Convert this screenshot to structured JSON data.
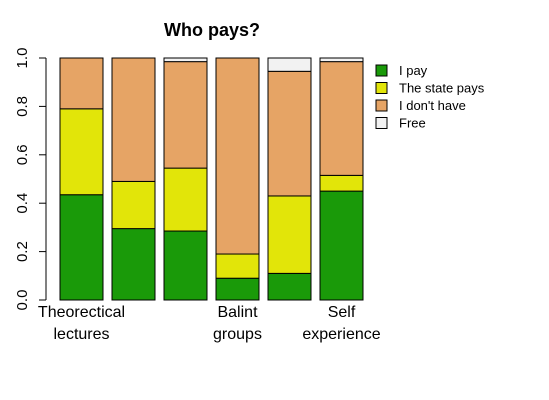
{
  "chart_data": {
    "type": "bar",
    "stacked": true,
    "title": "Who pays?",
    "xlabel": "",
    "ylabel": "",
    "ylim": [
      0,
      1
    ],
    "yticks": [
      "0.0",
      "0.2",
      "0.4",
      "0.6",
      "0.8",
      "1.0"
    ],
    "category_labels": [
      [
        "Theorectical",
        "lectures"
      ],
      [],
      [],
      [
        "Balint",
        "groups"
      ],
      [],
      [
        "Self",
        "experience"
      ]
    ],
    "series": [
      {
        "name": "I pay",
        "color": "#1a9a09",
        "values": [
          0.435,
          0.295,
          0.285,
          0.09,
          0.11,
          0.45
        ]
      },
      {
        "name": "The state pays",
        "color": "#e2e509",
        "values": [
          0.355,
          0.195,
          0.26,
          0.1,
          0.32,
          0.065
        ]
      },
      {
        "name": "I don't have",
        "color": "#e6a465",
        "values": [
          0.21,
          0.51,
          0.44,
          0.81,
          0.515,
          0.47
        ]
      },
      {
        "name": "Free",
        "color": "#f2f2f2",
        "values": [
          0.0,
          0.0,
          0.015,
          0.0,
          0.055,
          0.015
        ]
      }
    ],
    "legend_position": "right",
    "grid": false
  }
}
